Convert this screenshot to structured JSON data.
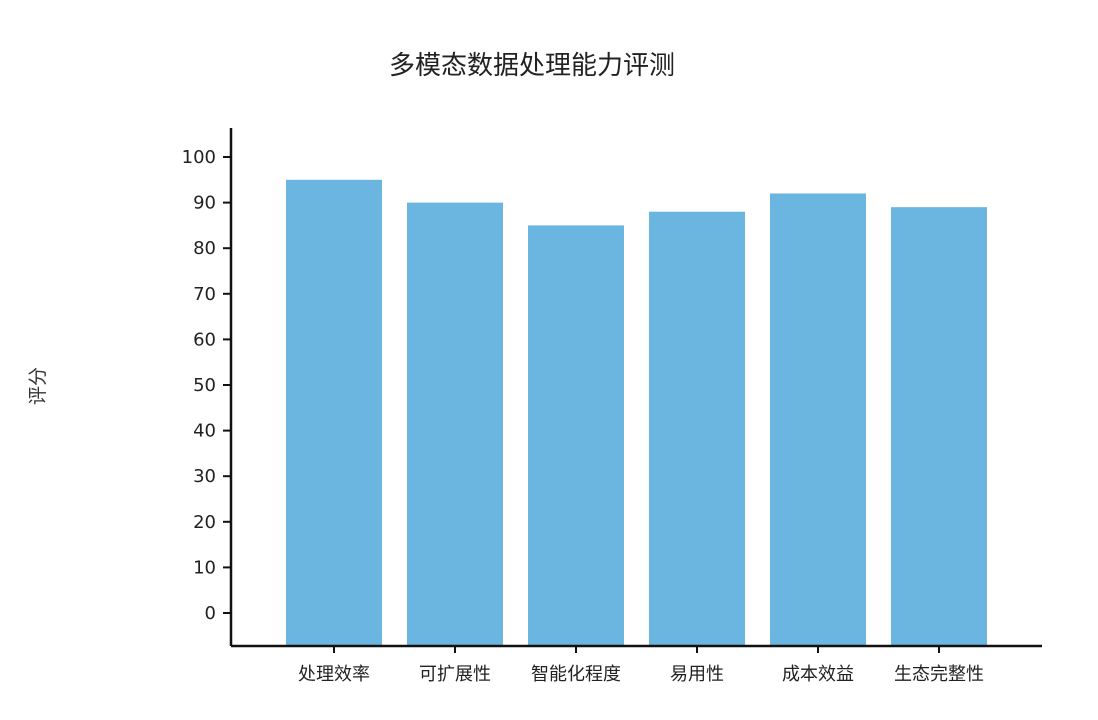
{
  "chart_data": {
    "type": "bar",
    "title": "多模态数据处理能力评测",
    "xlabel": "",
    "ylabel": "评分",
    "categories": [
      "处理效率",
      "可扩展性",
      "智能化程度",
      "易用性",
      "成本效益",
      "生态完整性"
    ],
    "values": [
      95,
      90,
      85,
      88,
      92,
      89
    ],
    "ylim": [
      0,
      100
    ],
    "yticks": [
      0,
      10,
      20,
      30,
      40,
      50,
      60,
      70,
      80,
      90,
      100
    ],
    "grid": false,
    "legend": "none",
    "bar_color": "#6bb5e1",
    "axis_color": "#111111"
  }
}
